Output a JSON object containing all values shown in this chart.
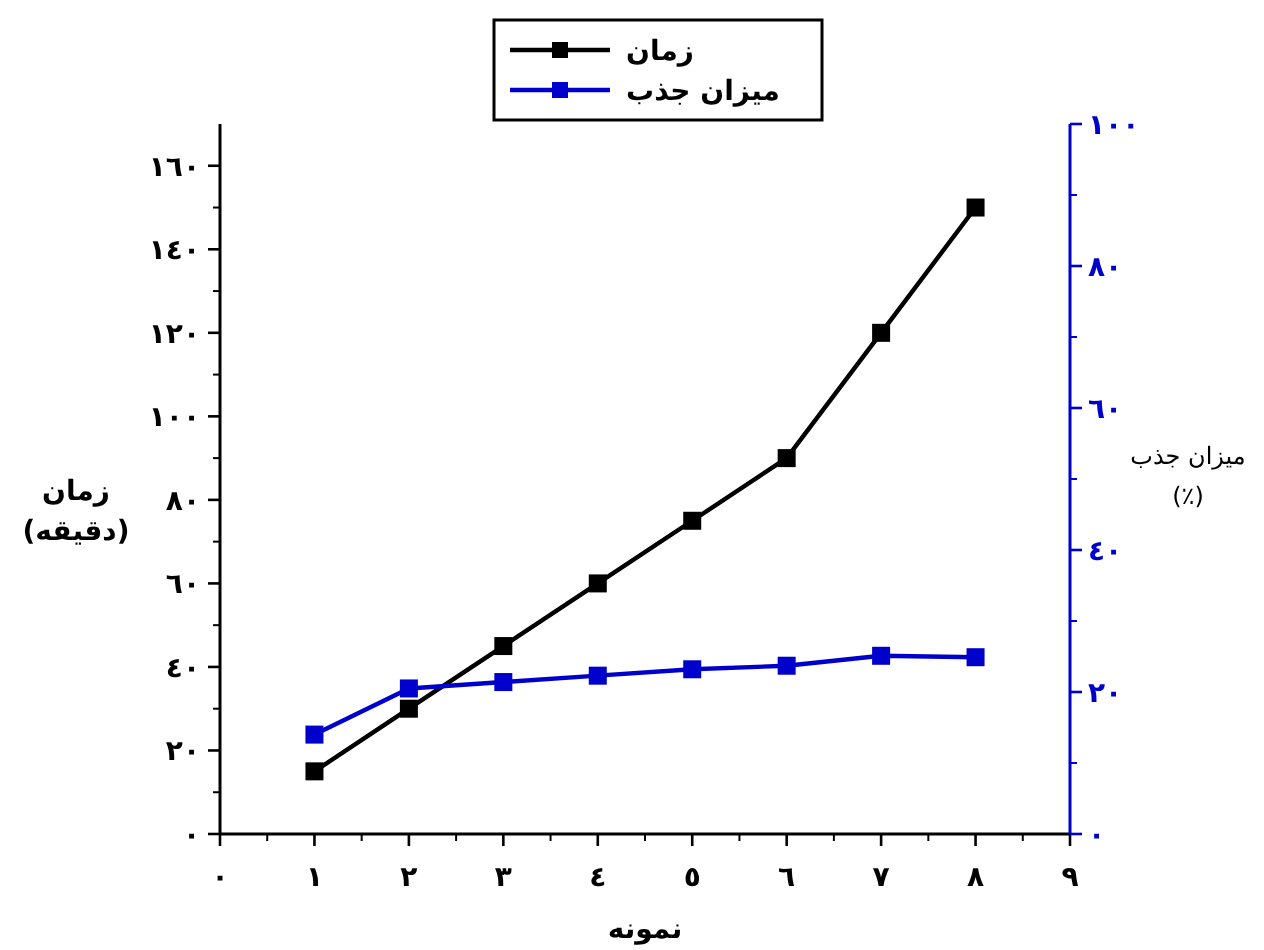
{
  "chart_data": {
    "type": "line",
    "xlabel": "نمونه",
    "ylabel": "زمان (دقیقه)",
    "y2label": "میزان جذب (٪)",
    "x": [
      1,
      2,
      3,
      4,
      5,
      6,
      7,
      8
    ],
    "series": [
      {
        "name": "زمان",
        "color": "#000000",
        "values": [
          15,
          30,
          45,
          60,
          75,
          90,
          120,
          150
        ]
      },
      {
        "name": "میزان جذب",
        "color": "#0000cc",
        "axis": "y2",
        "values": [
          14,
          20.5,
          21.4,
          22.3,
          23.2,
          23.7,
          25.1,
          24.9
        ]
      }
    ],
    "xlim": [
      0,
      9
    ],
    "xticks": [
      {
        "value": 0,
        "label": "٠"
      },
      {
        "value": 1,
        "label": "١"
      },
      {
        "value": 2,
        "label": "٢"
      },
      {
        "value": 3,
        "label": "٣"
      },
      {
        "value": 4,
        "label": "٤"
      },
      {
        "value": 5,
        "label": "٥"
      },
      {
        "value": 6,
        "label": "٦"
      },
      {
        "value": 7,
        "label": "٧"
      },
      {
        "value": 8,
        "label": "٨"
      },
      {
        "value": 9,
        "label": "٩"
      }
    ],
    "ylim": [
      0,
      170
    ],
    "yticks": [
      {
        "value": 0,
        "label": "٠"
      },
      {
        "value": 20,
        "label": "٢٠"
      },
      {
        "value": 40,
        "label": "٤٠"
      },
      {
        "value": 60,
        "label": "٦٠"
      },
      {
        "value": 80,
        "label": "٨٠"
      },
      {
        "value": 100,
        "label": "١٠٠"
      },
      {
        "value": 120,
        "label": "١٢٠"
      },
      {
        "value": 140,
        "label": "١٤٠"
      },
      {
        "value": 160,
        "label": "١٦٠"
      }
    ],
    "y2lim": [
      0,
      100
    ],
    "y2ticks": [
      {
        "value": 0,
        "label": "٠"
      },
      {
        "value": 20,
        "label": "٢٠"
      },
      {
        "value": 40,
        "label": "٤٠"
      },
      {
        "value": 60,
        "label": "٦٠"
      },
      {
        "value": 80,
        "label": "٨٠"
      },
      {
        "value": 100,
        "label": "١٠٠"
      }
    ],
    "marker": "square",
    "line_style": "solid",
    "grid": false,
    "legend": "top"
  }
}
